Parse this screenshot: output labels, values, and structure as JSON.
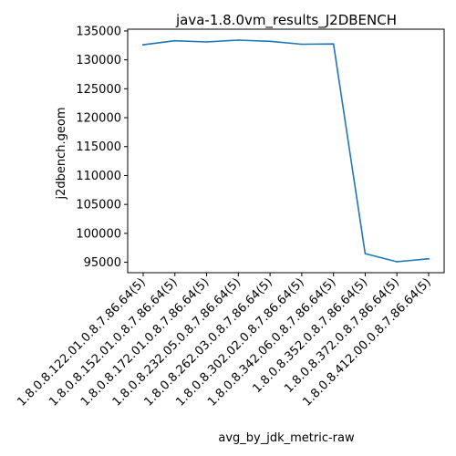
{
  "chart_data": {
    "type": "line",
    "title": "java-1.8.0vm_results_J2DBENCH",
    "xlabel": "avg_by_jdk_metric-raw",
    "ylabel": "j2dbench.geom",
    "categories": [
      "1.8.0.8.122.01.0.8.7.86.64(5)",
      "1.8.0.8.152.01.0.8.7.86.64(5)",
      "1.8.0.8.172.01.0.8.7.86.64(5)",
      "1.8.0.8.232.05.0.8.7.86.64(5)",
      "1.8.0.8.262.03.0.8.7.86.64(5)",
      "1.8.0.8.302.02.0.8.7.86.64(5)",
      "1.8.0.8.342.06.0.8.7.86.64(5)",
      "1.8.0.8.352.0.8.7.86.64(5)",
      "1.8.0.8.372.0.8.7.86.64(5)",
      "1.8.0.8.412.00.0.8.7.86.64(5)"
    ],
    "series": [
      {
        "color": "#1f77b4",
        "values": [
          132600,
          133300,
          133100,
          133400,
          133200,
          132700,
          132750,
          96500,
          95100,
          95600
        ]
      }
    ],
    "ylim": [
      93200,
      135300
    ],
    "yticks": [
      95000,
      100000,
      105000,
      110000,
      115000,
      120000,
      125000,
      130000,
      135000
    ],
    "ytick_labels": [
      "95000",
      "100000",
      "105000",
      "110000",
      "115000",
      "120000",
      "125000",
      "130000",
      "135000"
    ],
    "grid": false,
    "legend": "none"
  }
}
